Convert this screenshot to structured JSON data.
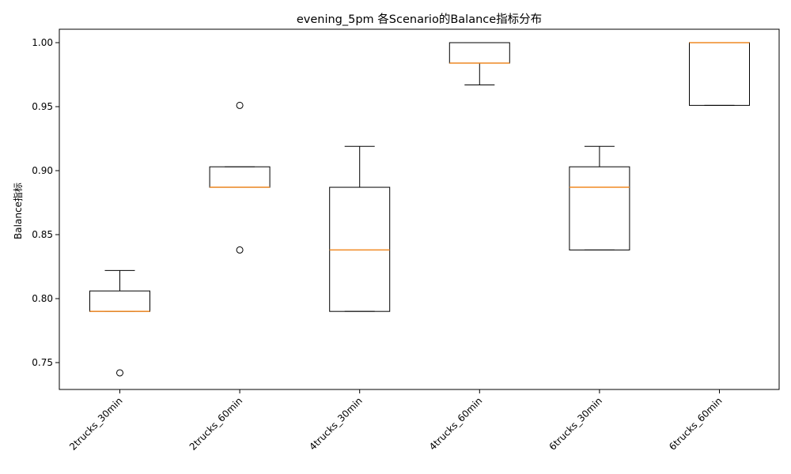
{
  "chart_data": {
    "type": "box",
    "title": "evening_5pm 各Scenario的Balance指标分布",
    "xlabel": "",
    "ylabel": "Balance指标",
    "ylim": [
      0.729,
      1.0105
    ],
    "yticks": [
      0.75,
      0.8,
      0.85,
      0.9,
      0.95,
      1.0
    ],
    "ytick_labels": [
      "0.75",
      "0.80",
      "0.85",
      "0.90",
      "0.95",
      "1.00"
    ],
    "categories": [
      "2trucks_30min",
      "2trucks_60min",
      "4trucks_30min",
      "4trucks_60min",
      "6trucks_30min",
      "6trucks_60min"
    ],
    "boxes": [
      {
        "whisker_low": 0.79,
        "q1": 0.79,
        "median": 0.79,
        "q3": 0.806,
        "whisker_high": 0.822,
        "outliers": [
          0.742
        ]
      },
      {
        "whisker_low": 0.887,
        "q1": 0.887,
        "median": 0.887,
        "q3": 0.903,
        "whisker_high": 0.903,
        "outliers": [
          0.951,
          0.838
        ]
      },
      {
        "whisker_low": 0.79,
        "q1": 0.79,
        "median": 0.838,
        "q3": 0.887,
        "whisker_high": 0.919,
        "outliers": []
      },
      {
        "whisker_low": 0.967,
        "q1": 0.984,
        "median": 0.984,
        "q3": 1.0,
        "whisker_high": 1.0,
        "outliers": []
      },
      {
        "whisker_low": 0.838,
        "q1": 0.838,
        "median": 0.887,
        "q3": 0.903,
        "whisker_high": 0.919,
        "outliers": []
      },
      {
        "whisker_low": 0.951,
        "q1": 0.951,
        "median": 1.0,
        "q3": 1.0,
        "whisker_high": 1.0,
        "outliers": []
      }
    ],
    "colors": {
      "box": "#000000",
      "median": "#f08a24",
      "outlier": "#000000"
    },
    "grid": false,
    "legend": "none"
  }
}
